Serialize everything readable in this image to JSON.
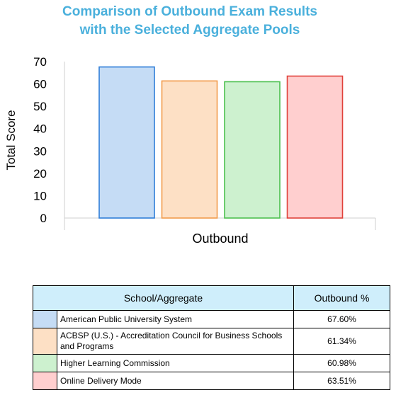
{
  "title_line1": "Comparison of Outbound Exam Results",
  "title_line2": "with the Selected Aggregate Pools",
  "chart_data": {
    "type": "bar",
    "categories": [
      "Outbound"
    ],
    "series": [
      {
        "name": "American Public University System",
        "values": [
          67.6
        ],
        "color": "#c5dcf5",
        "stroke": "#2f7ed8"
      },
      {
        "name": "ACBSP (U.S.) - Accreditation Council for Business Schools and Programs",
        "values": [
          61.34
        ],
        "color": "#fde0c5",
        "stroke": "#f29b4b"
      },
      {
        "name": "Higher Learning Commission",
        "values": [
          60.98
        ],
        "color": "#cdf1cf",
        "stroke": "#4cc04f"
      },
      {
        "name": "Online Delivery Mode",
        "values": [
          63.51
        ],
        "color": "#ffcfcf",
        "stroke": "#e0413a"
      }
    ],
    "ylabel": "Total Score",
    "xlabel": "Outbound",
    "ylim": [
      0,
      70
    ],
    "yticks": [
      "0",
      "10",
      "20",
      "30",
      "40",
      "50",
      "60",
      "70"
    ],
    "grid": false
  },
  "table": {
    "header_name": "School/Aggregate",
    "header_value": "Outbound %",
    "rows": [
      {
        "name": "American Public University System",
        "value": "67.60%",
        "color": "#c5dcf5"
      },
      {
        "name": "ACBSP (U.S.) - Accreditation Council for Business Schools and Programs",
        "value": "61.34%",
        "color": "#fde0c5"
      },
      {
        "name": "Higher Learning Commission",
        "value": "60.98%",
        "color": "#cdf1cf"
      },
      {
        "name": "Online Delivery Mode",
        "value": "63.51%",
        "color": "#ffcfcf"
      }
    ]
  }
}
